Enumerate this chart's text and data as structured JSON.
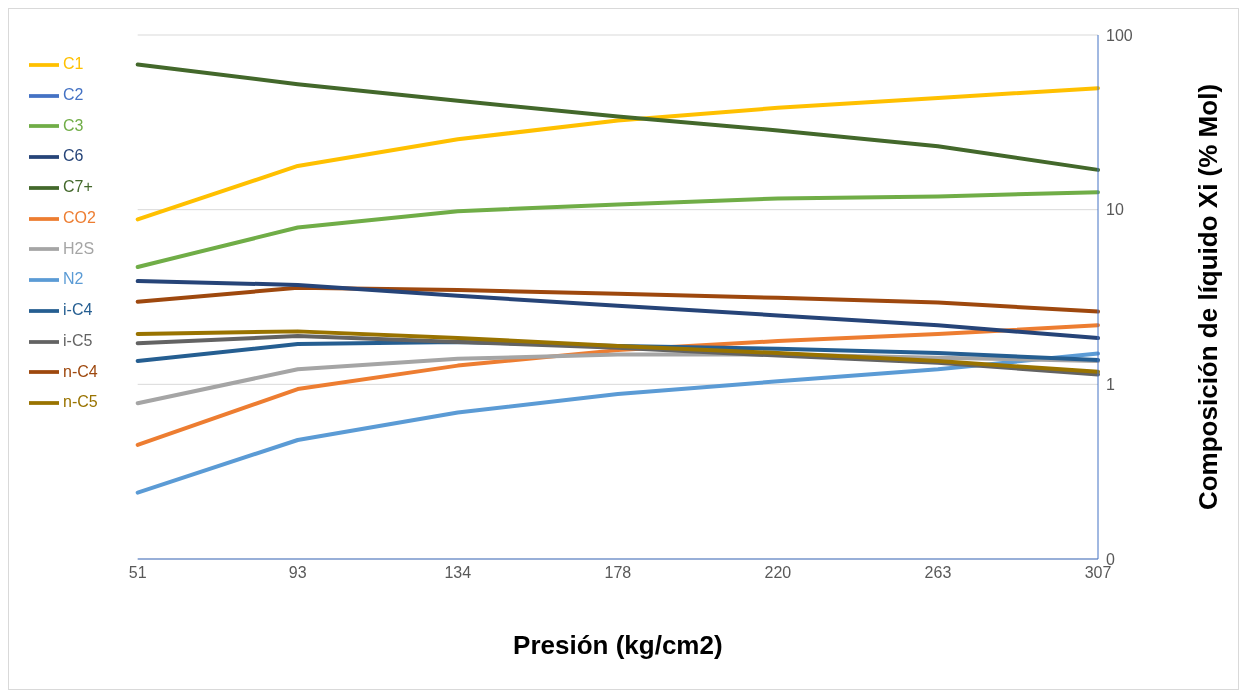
{
  "chart_data": {
    "type": "line",
    "xlabel": "Presión (kg/cm2)",
    "ylabel": "Composición de líquido Xi (% Mol)",
    "categories": [
      "51",
      "93",
      "134",
      "178",
      "220",
      "263",
      "307"
    ],
    "log": true,
    "ylim": [
      0.1,
      100
    ],
    "yticks": [
      {
        "value": 0.1,
        "label": "0"
      },
      1,
      10,
      100
    ],
    "grid": "y",
    "legend": "left",
    "marker": "none",
    "series": [
      {
        "name": "N2",
        "color": "#5b9bd5",
        "values": [
          0.24,
          0.48,
          0.69,
          0.88,
          1.04,
          1.22,
          1.5
        ]
      },
      {
        "name": "CO2",
        "color": "#ed7d31",
        "values": [
          0.45,
          0.94,
          1.28,
          1.57,
          1.77,
          1.94,
          2.18
        ]
      },
      {
        "name": "H2S",
        "color": "#a5a5a5",
        "values": [
          0.78,
          1.22,
          1.4,
          1.48,
          1.48,
          1.42,
          1.36
        ]
      },
      {
        "name": "C1",
        "color": "#ffc000",
        "values": [
          8.8,
          17.8,
          25.3,
          32.4,
          38.3,
          43.6,
          49.6
        ]
      },
      {
        "name": "C2",
        "color": "#4472c4",
        "values": [
          null,
          null,
          null,
          null,
          null,
          null,
          null
        ]
      },
      {
        "name": "C3",
        "color": "#70ad47",
        "values": [
          4.7,
          7.9,
          9.8,
          10.7,
          11.6,
          11.9,
          12.6
        ]
      },
      {
        "name": "i-C4",
        "color": "#255e91",
        "values": [
          1.36,
          1.7,
          1.75,
          1.66,
          1.6,
          1.51,
          1.38
        ]
      },
      {
        "name": "n-C4",
        "color": "#9e480e",
        "values": [
          2.97,
          3.57,
          3.47,
          3.3,
          3.13,
          2.94,
          2.61
        ]
      },
      {
        "name": "i-C5",
        "color": "#636363",
        "values": [
          1.72,
          1.89,
          1.75,
          1.62,
          1.46,
          1.33,
          1.14
        ]
      },
      {
        "name": "n-C5",
        "color": "#997300",
        "values": [
          1.94,
          2.01,
          1.84,
          1.66,
          1.51,
          1.36,
          1.18
        ]
      },
      {
        "name": "C6",
        "color": "#264478",
        "values": [
          3.9,
          3.71,
          3.21,
          2.82,
          2.48,
          2.18,
          1.84
        ]
      },
      {
        "name": "C7+",
        "color": "#43682b",
        "values": [
          67.8,
          52.3,
          42,
          34.1,
          28.4,
          23.1,
          16.9
        ]
      }
    ]
  }
}
